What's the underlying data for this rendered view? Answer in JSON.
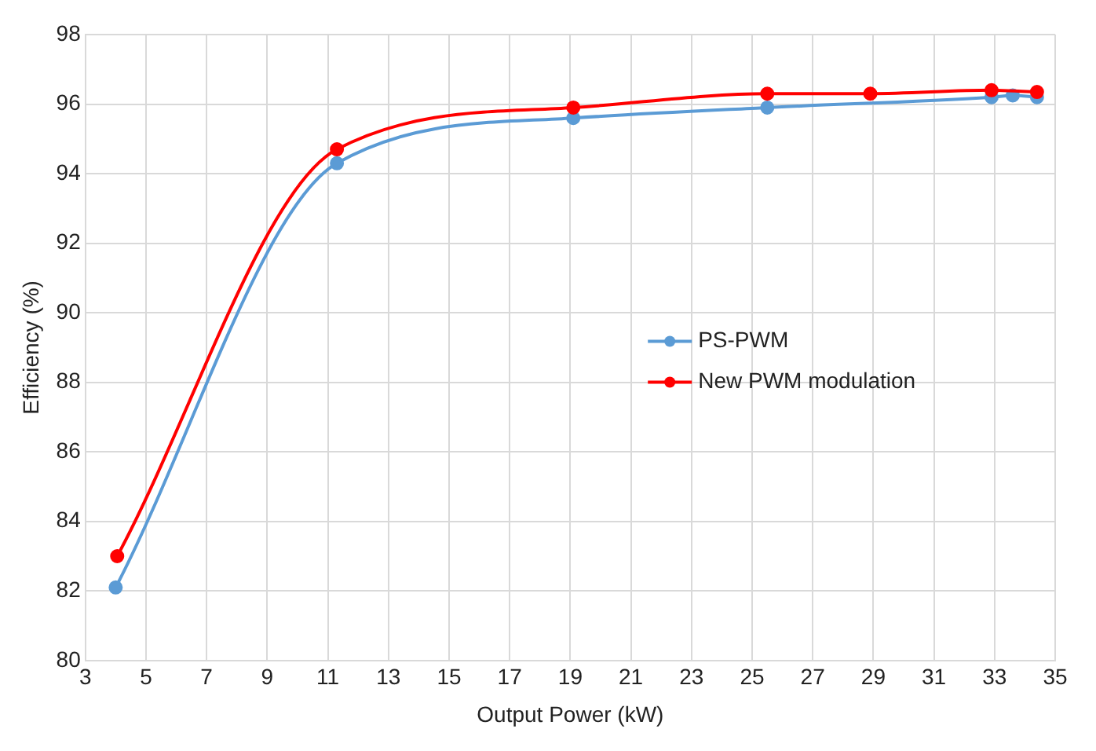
{
  "chart_data": {
    "type": "line",
    "xlabel": "Output Power (kW)",
    "ylabel": "Efficiency (%)",
    "xlim": [
      3,
      35
    ],
    "xticks": [
      3,
      5,
      7,
      9,
      11,
      13,
      15,
      17,
      19,
      21,
      23,
      25,
      27,
      29,
      31,
      33,
      35
    ],
    "ylim": [
      80,
      98
    ],
    "yticks": [
      80,
      82,
      84,
      86,
      88,
      90,
      92,
      94,
      96,
      98
    ],
    "grid": true,
    "legend": "right",
    "marker": "circle",
    "line_style": "solid",
    "series": [
      {
        "name": "PS-PWM",
        "color": "#5b9bd5",
        "x": [
          4,
          11.3,
          19.1,
          25.5,
          32.9,
          33.6,
          34.4
        ],
        "values": [
          82.1,
          94.3,
          95.6,
          95.9,
          96.2,
          96.25,
          96.2
        ]
      },
      {
        "name": "New PWM modulation",
        "color": "#ff0000",
        "x": [
          4.05,
          11.3,
          19.1,
          25.5,
          28.9,
          32.9,
          34.4
        ],
        "values": [
          83.0,
          94.7,
          95.9,
          96.3,
          96.3,
          96.4,
          96.35
        ]
      }
    ]
  }
}
